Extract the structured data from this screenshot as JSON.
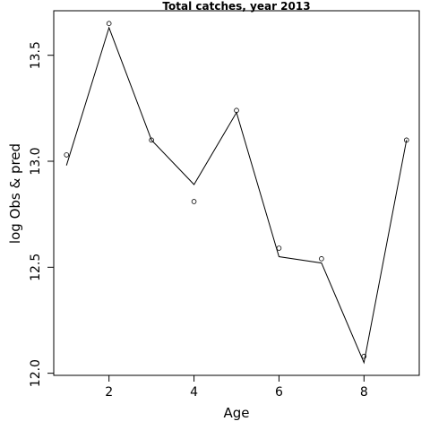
{
  "chart_data": {
    "type": "line",
    "title": "Total catches, year 2013",
    "xlabel": "Age",
    "ylabel": "log Obs & pred",
    "xlim": [
      0.7,
      9.3
    ],
    "ylim": [
      11.99,
      13.71
    ],
    "x_ticks": [
      2,
      4,
      6,
      8
    ],
    "y_ticks": [
      12.0,
      12.5,
      13.0,
      13.5
    ],
    "y_tick_labels": [
      "12.0",
      "12.5",
      "13.0",
      "13.5"
    ],
    "grid": false,
    "legend": "none",
    "series": [
      {
        "role": "observed",
        "style": "points",
        "x": [
          1,
          2,
          3,
          4,
          5,
          6,
          7,
          8,
          9
        ],
        "y": [
          13.03,
          13.65,
          13.1,
          12.81,
          13.24,
          12.59,
          12.54,
          12.08,
          13.1
        ]
      },
      {
        "role": "predicted",
        "style": "line",
        "x": [
          1,
          2,
          3,
          4,
          5,
          6,
          7,
          8,
          9
        ],
        "y": [
          12.98,
          13.63,
          13.1,
          12.89,
          13.23,
          12.55,
          12.52,
          12.05,
          13.1
        ]
      }
    ]
  }
}
